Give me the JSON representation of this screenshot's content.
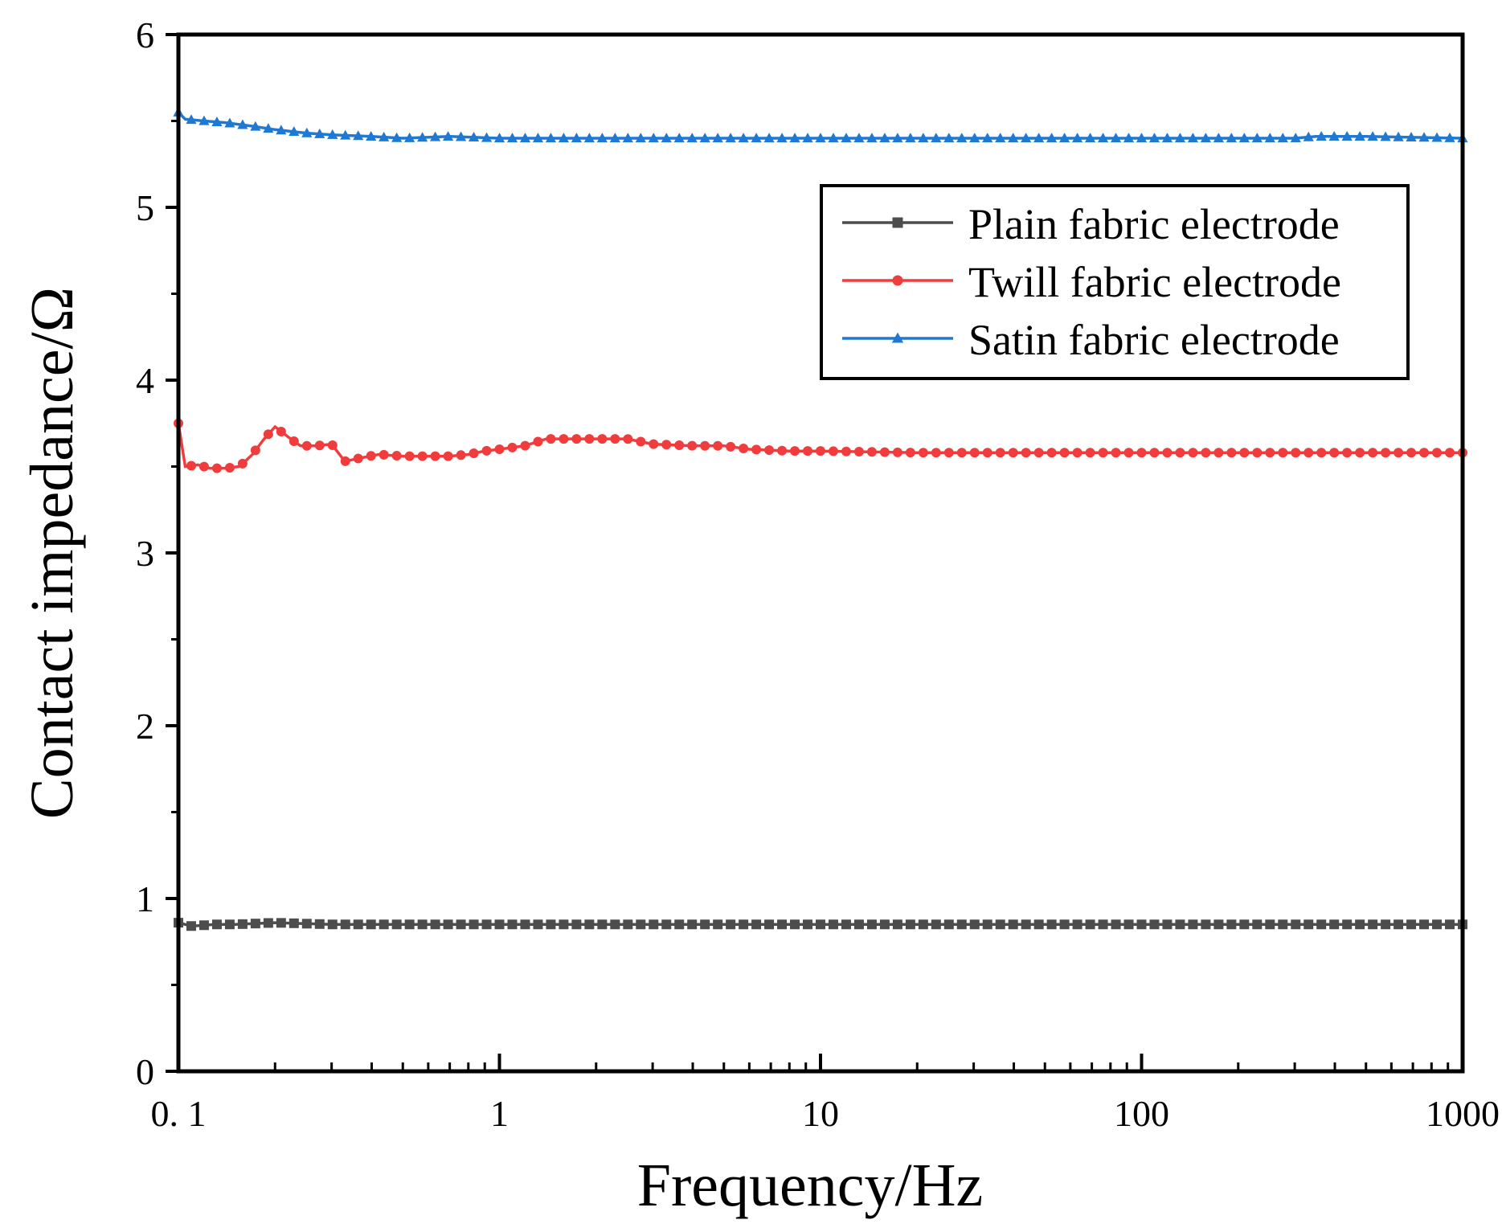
{
  "chart_data": {
    "type": "line",
    "title": "",
    "xlabel": "Frequency/Hz",
    "ylabel": "Contact impedance/Ω",
    "xscale": "log",
    "xlim": [
      0.1,
      1000
    ],
    "ylim": [
      0,
      6
    ],
    "x_ticks": [
      {
        "value": 0.1,
        "label": "0. 1"
      },
      {
        "value": 1,
        "label": "1"
      },
      {
        "value": 10,
        "label": "10"
      },
      {
        "value": 100,
        "label": "100"
      },
      {
        "value": 1000,
        "label": "1000"
      }
    ],
    "y_ticks": [
      {
        "value": 0,
        "label": "0"
      },
      {
        "value": 1,
        "label": "1"
      },
      {
        "value": 2,
        "label": "2"
      },
      {
        "value": 3,
        "label": "3"
      },
      {
        "value": 4,
        "label": "4"
      },
      {
        "value": 5,
        "label": "5"
      },
      {
        "value": 6,
        "label": "6"
      }
    ],
    "grid": false,
    "legend_position": "top-right",
    "series": [
      {
        "name": "Plain fabric electrode",
        "color": "#4d4d4d",
        "marker": "square",
        "x": [
          0.1,
          0.11,
          0.13,
          0.15,
          0.2,
          0.3,
          0.5,
          1,
          2,
          5,
          10,
          20,
          50,
          100,
          200,
          500,
          1000
        ],
        "y": [
          0.86,
          0.84,
          0.85,
          0.85,
          0.86,
          0.85,
          0.85,
          0.85,
          0.85,
          0.85,
          0.85,
          0.85,
          0.85,
          0.85,
          0.85,
          0.85,
          0.85
        ]
      },
      {
        "name": "Twill fabric electrode",
        "color": "#f03c3c",
        "marker": "circle",
        "x": [
          0.1,
          0.105,
          0.115,
          0.125,
          0.14,
          0.155,
          0.17,
          0.185,
          0.2,
          0.22,
          0.24,
          0.27,
          0.3,
          0.33,
          0.37,
          0.42,
          0.5,
          0.6,
          0.7,
          0.8,
          0.9,
          1.0,
          1.2,
          1.4,
          1.7,
          2.0,
          2.5,
          3.0,
          4.0,
          5.0,
          6.0,
          8.0,
          10,
          20,
          50,
          100,
          200,
          500,
          1000
        ],
        "y": [
          3.75,
          3.5,
          3.51,
          3.49,
          3.49,
          3.5,
          3.57,
          3.66,
          3.73,
          3.67,
          3.62,
          3.62,
          3.63,
          3.53,
          3.55,
          3.57,
          3.56,
          3.56,
          3.56,
          3.57,
          3.59,
          3.6,
          3.62,
          3.66,
          3.66,
          3.66,
          3.66,
          3.63,
          3.62,
          3.62,
          3.6,
          3.59,
          3.59,
          3.58,
          3.58,
          3.58,
          3.58,
          3.58,
          3.58
        ]
      },
      {
        "name": "Satin fabric electrode",
        "color": "#1f78d1",
        "marker": "triangle",
        "x": [
          0.1,
          0.105,
          0.12,
          0.14,
          0.17,
          0.2,
          0.25,
          0.3,
          0.4,
          0.5,
          0.7,
          1.0,
          1.5,
          2.0,
          3.0,
          5.0,
          10,
          20,
          50,
          100,
          200,
          300,
          350,
          500,
          1000
        ],
        "y": [
          5.55,
          5.51,
          5.5,
          5.49,
          5.47,
          5.45,
          5.43,
          5.42,
          5.41,
          5.4,
          5.41,
          5.4,
          5.4,
          5.4,
          5.4,
          5.4,
          5.4,
          5.4,
          5.4,
          5.4,
          5.4,
          5.4,
          5.41,
          5.41,
          5.4
        ]
      }
    ]
  }
}
